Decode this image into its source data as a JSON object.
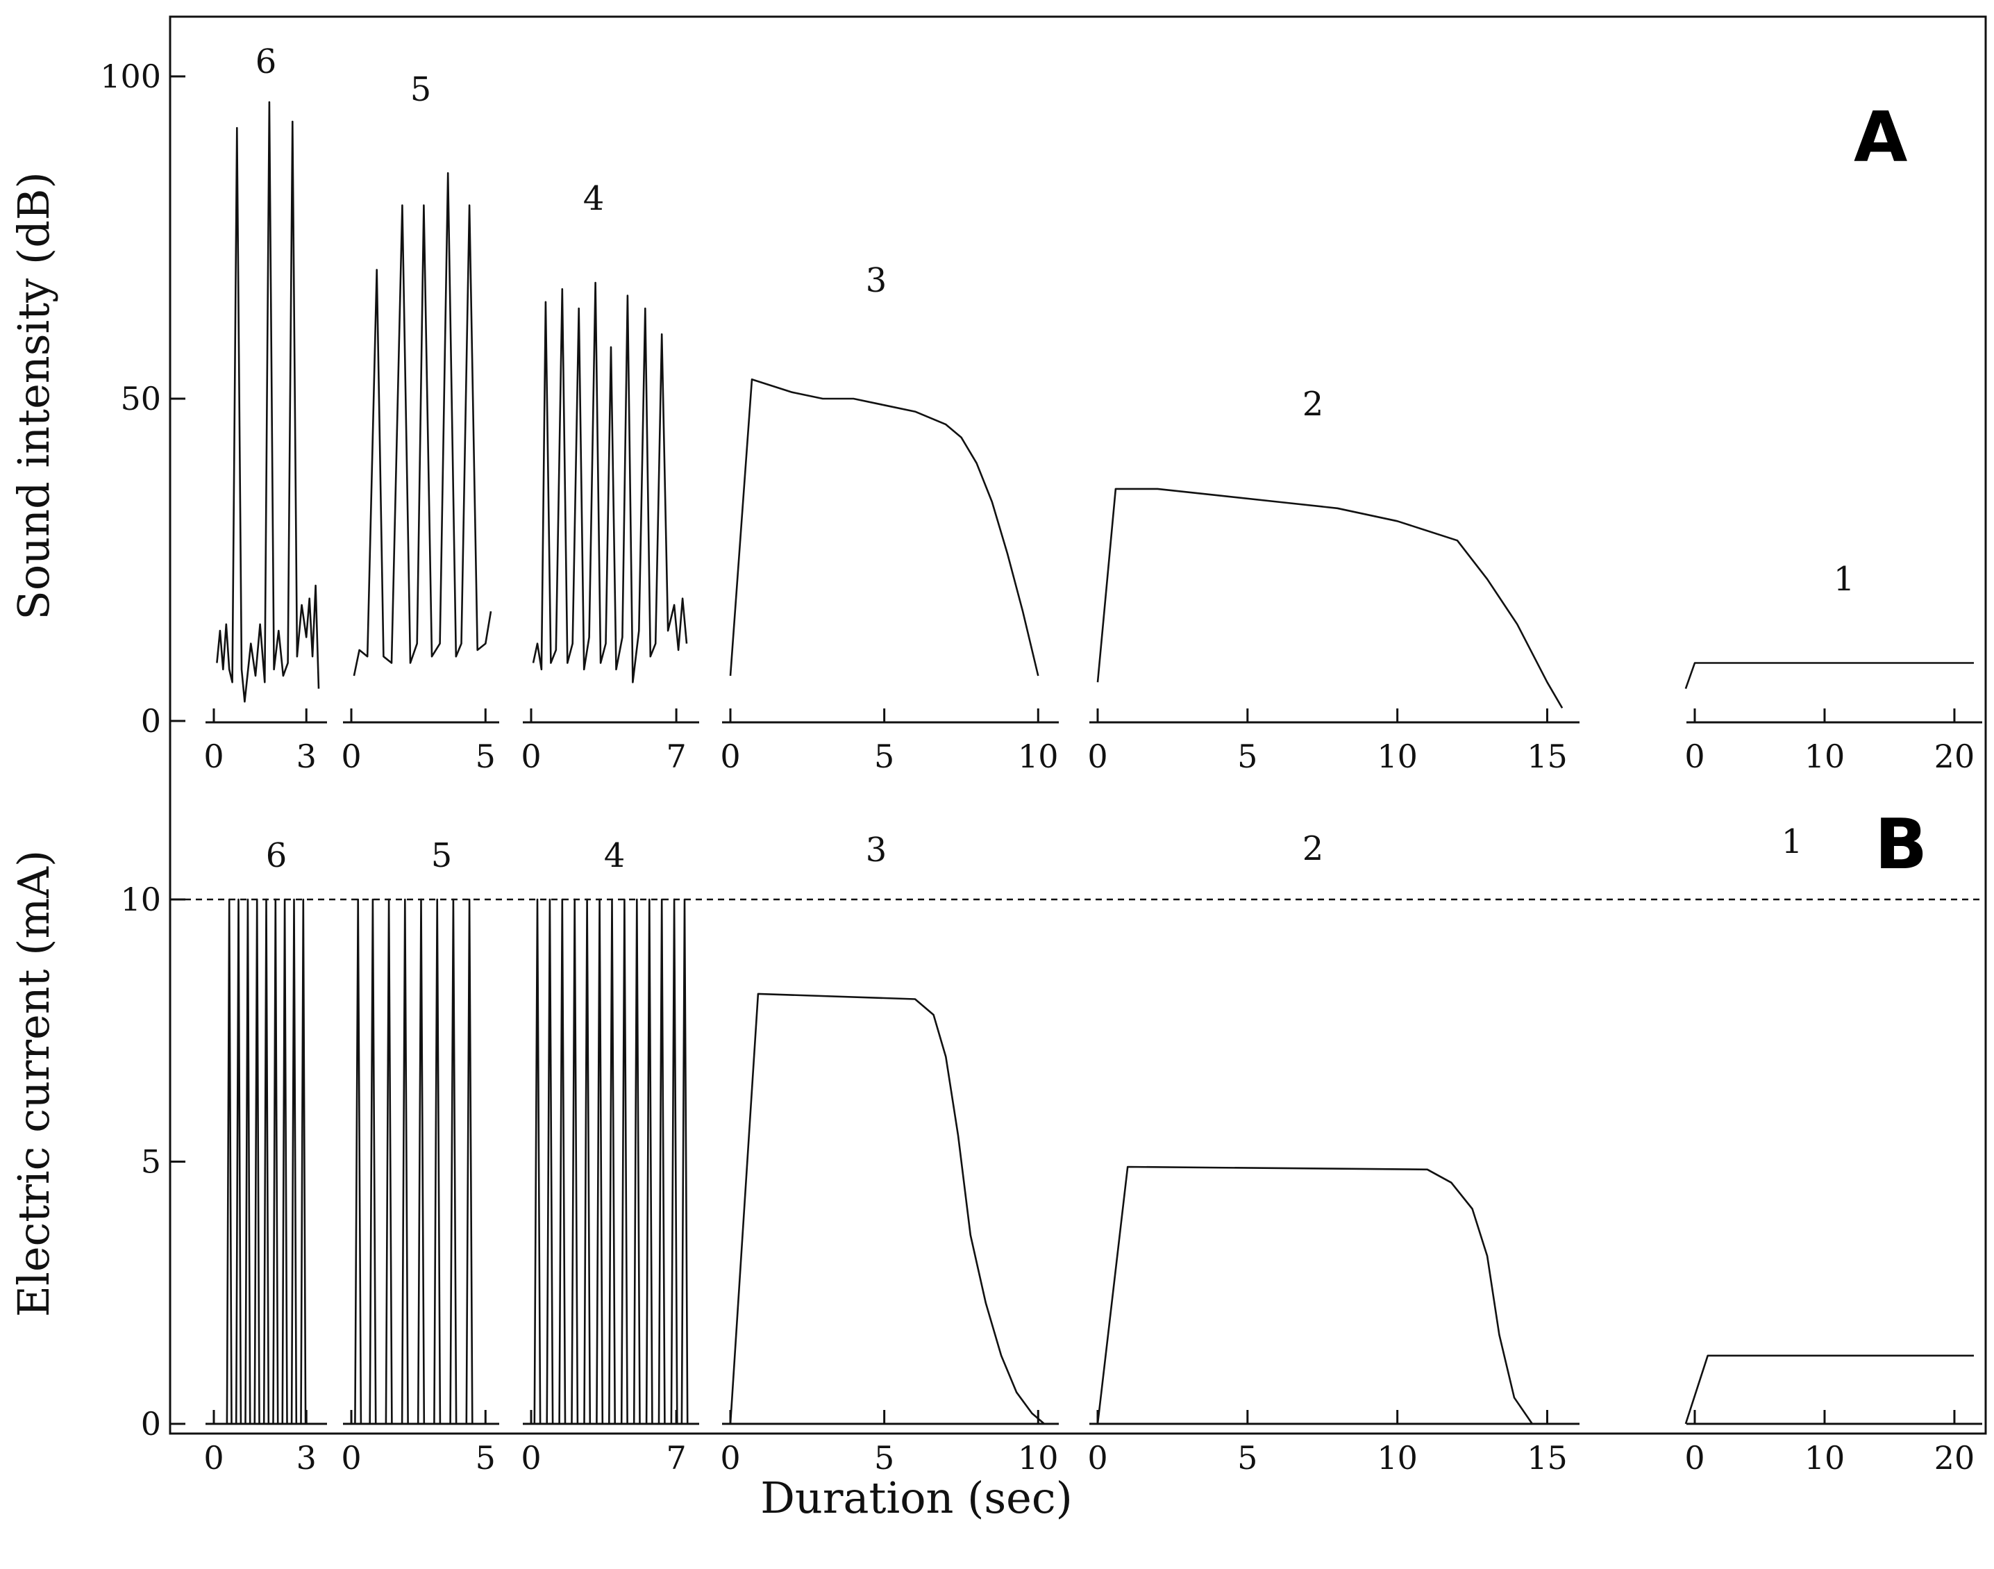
{
  "chart_data": [
    {
      "panel": "A",
      "type": "line",
      "ylabel": "Sound intensity (dB)",
      "xlabel": "",
      "ylim": [
        0,
        100
      ],
      "yticks": [
        0,
        50,
        100
      ],
      "segments": [
        {
          "label": "6",
          "xlim": [
            0,
            3.4
          ],
          "xticks": [
            0,
            3
          ],
          "points": [
            [
              0.1,
              9
            ],
            [
              0.2,
              14
            ],
            [
              0.3,
              8
            ],
            [
              0.4,
              15
            ],
            [
              0.5,
              8
            ],
            [
              0.6,
              6
            ],
            [
              0.75,
              92
            ],
            [
              0.9,
              8
            ],
            [
              1.0,
              3
            ],
            [
              1.2,
              12
            ],
            [
              1.35,
              7
            ],
            [
              1.5,
              15
            ],
            [
              1.65,
              6
            ],
            [
              1.8,
              96
            ],
            [
              1.95,
              8
            ],
            [
              2.1,
              14
            ],
            [
              2.25,
              7
            ],
            [
              2.4,
              9
            ],
            [
              2.55,
              93
            ],
            [
              2.7,
              10
            ],
            [
              2.85,
              18
            ],
            [
              3.0,
              13
            ],
            [
              3.1,
              19
            ],
            [
              3.2,
              10
            ],
            [
              3.3,
              21
            ],
            [
              3.4,
              5
            ]
          ]
        },
        {
          "label": "5",
          "xlim": [
            0,
            5.2
          ],
          "xticks": [
            0,
            5
          ],
          "points": [
            [
              0.1,
              7
            ],
            [
              0.3,
              11
            ],
            [
              0.6,
              10
            ],
            [
              0.95,
              70
            ],
            [
              1.2,
              10
            ],
            [
              1.5,
              9
            ],
            [
              1.9,
              80
            ],
            [
              2.2,
              9
            ],
            [
              2.45,
              12
            ],
            [
              2.7,
              80
            ],
            [
              3.0,
              10
            ],
            [
              3.3,
              12
            ],
            [
              3.6,
              85
            ],
            [
              3.9,
              10
            ],
            [
              4.1,
              12
            ],
            [
              4.4,
              80
            ],
            [
              4.7,
              11
            ],
            [
              5.0,
              12
            ],
            [
              5.2,
              17
            ]
          ]
        },
        {
          "label": "4",
          "xlim": [
            0,
            7.7
          ],
          "xticks": [
            0,
            7
          ],
          "points": [
            [
              0.1,
              9
            ],
            [
              0.3,
              12
            ],
            [
              0.5,
              8
            ],
            [
              0.7,
              65
            ],
            [
              0.95,
              9
            ],
            [
              1.2,
              11
            ],
            [
              1.5,
              67
            ],
            [
              1.75,
              9
            ],
            [
              2.0,
              12
            ],
            [
              2.3,
              64
            ],
            [
              2.55,
              8
            ],
            [
              2.8,
              13
            ],
            [
              3.1,
              68
            ],
            [
              3.35,
              9
            ],
            [
              3.6,
              12
            ],
            [
              3.85,
              58
            ],
            [
              4.1,
              8
            ],
            [
              4.4,
              13
            ],
            [
              4.65,
              66
            ],
            [
              4.9,
              6
            ],
            [
              5.2,
              14
            ],
            [
              5.5,
              64
            ],
            [
              5.75,
              10
            ],
            [
              6.0,
              12
            ],
            [
              6.3,
              60
            ],
            [
              6.6,
              14
            ],
            [
              6.9,
              18
            ],
            [
              7.1,
              11
            ],
            [
              7.3,
              19
            ],
            [
              7.5,
              12
            ]
          ]
        },
        {
          "label": "3",
          "xlim": [
            0,
            10.4
          ],
          "xticks": [
            0,
            5,
            10
          ],
          "points": [
            [
              0,
              7
            ],
            [
              0.7,
              53
            ],
            [
              2,
              51
            ],
            [
              3,
              50
            ],
            [
              4,
              50
            ],
            [
              5,
              49
            ],
            [
              6,
              48
            ],
            [
              7,
              46
            ],
            [
              7.5,
              44
            ],
            [
              8,
              40
            ],
            [
              8.5,
              34
            ],
            [
              9,
              26
            ],
            [
              9.5,
              17
            ],
            [
              10,
              7
            ]
          ]
        },
        {
          "label": "2",
          "xlim": [
            0,
            15.8
          ],
          "xticks": [
            0,
            5,
            10,
            15
          ],
          "points": [
            [
              0,
              6
            ],
            [
              0.6,
              36
            ],
            [
              2,
              36
            ],
            [
              4,
              35
            ],
            [
              6,
              34
            ],
            [
              8,
              33
            ],
            [
              10,
              31
            ],
            [
              12,
              28
            ],
            [
              13,
              22
            ],
            [
              14,
              15
            ],
            [
              15,
              6
            ],
            [
              15.5,
              2
            ]
          ]
        },
        {
          "label": "1",
          "xlim": [
            0,
            21.5
          ],
          "xticks": [
            0,
            10,
            20
          ],
          "points": [
            [
              -0.7,
              5
            ],
            [
              0,
              9
            ],
            [
              10,
              9
            ],
            [
              21.5,
              9
            ]
          ]
        }
      ]
    },
    {
      "panel": "B",
      "type": "line",
      "ylabel": "Electric current (mA)",
      "xlabel": "Duration (sec)",
      "ylim": [
        0,
        10
      ],
      "yticks": [
        0,
        5,
        10
      ],
      "reference_line": {
        "y": 10,
        "style": "dashed"
      },
      "segments": [
        {
          "label": "6",
          "xlim": [
            0,
            3.4
          ],
          "xticks": [
            0,
            3
          ],
          "pulses": [
            0.5,
            0.8,
            1.1,
            1.4,
            1.7,
            2.0,
            2.3,
            2.6,
            2.9
          ],
          "pulse_width": 0.15,
          "peak": 10
        },
        {
          "label": "5",
          "xlim": [
            0,
            5.2
          ],
          "xticks": [
            0,
            5
          ],
          "pulses": [
            0.25,
            0.8,
            1.4,
            2.0,
            2.6,
            3.2,
            3.8,
            4.4
          ],
          "pulse_width": 0.22,
          "peak": 10
        },
        {
          "label": "4",
          "xlim": [
            0,
            7.7
          ],
          "xticks": [
            0,
            7
          ],
          "pulses": [
            0.3,
            0.9,
            1.5,
            2.1,
            2.7,
            3.3,
            3.9,
            4.5,
            5.1,
            5.7,
            6.3,
            6.9,
            7.4
          ],
          "pulse_width": 0.28,
          "peak": 10
        },
        {
          "label": "3",
          "xlim": [
            0,
            10.4
          ],
          "xticks": [
            0,
            5,
            10
          ],
          "points": [
            [
              0,
              0
            ],
            [
              0.9,
              8.2
            ],
            [
              6,
              8.1
            ],
            [
              6.6,
              7.8
            ],
            [
              7,
              7
            ],
            [
              7.4,
              5.5
            ],
            [
              7.8,
              3.6
            ],
            [
              8.3,
              2.3
            ],
            [
              8.8,
              1.3
            ],
            [
              9.3,
              0.6
            ],
            [
              9.8,
              0.2
            ],
            [
              10.2,
              0
            ]
          ]
        },
        {
          "label": "2",
          "xlim": [
            0,
            15.8
          ],
          "xticks": [
            0,
            5,
            10,
            15
          ],
          "points": [
            [
              0,
              0
            ],
            [
              1,
              4.9
            ],
            [
              11,
              4.85
            ],
            [
              11.8,
              4.6
            ],
            [
              12.5,
              4.1
            ],
            [
              13,
              3.2
            ],
            [
              13.4,
              1.7
            ],
            [
              13.9,
              0.5
            ],
            [
              14.5,
              0
            ]
          ]
        },
        {
          "label": "1",
          "xlim": [
            0,
            21.5
          ],
          "xticks": [
            0,
            10,
            20
          ],
          "points": [
            [
              -0.7,
              0
            ],
            [
              1,
              1.3
            ],
            [
              21.5,
              1.3
            ]
          ]
        }
      ]
    }
  ]
}
